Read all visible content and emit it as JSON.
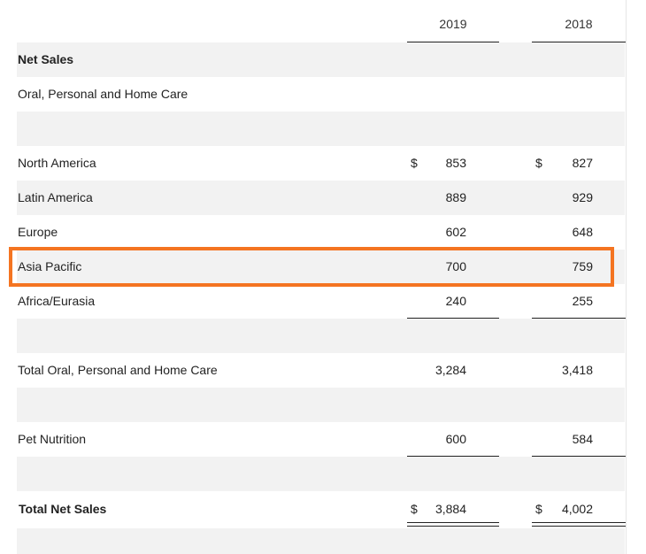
{
  "columns": {
    "y2019": "2019",
    "y2018": "2018"
  },
  "currency": "$",
  "highlight_color": "#f47421",
  "rows": {
    "net_sales_header": {
      "label": "Net Sales"
    },
    "segment_header": {
      "label": "Oral, Personal and Home Care"
    },
    "north_america": {
      "label": "North America",
      "v2019": "853",
      "v2018": "827"
    },
    "latin_america": {
      "label": "Latin America",
      "v2019": "889",
      "v2018": "929"
    },
    "europe": {
      "label": "Europe",
      "v2019": "602",
      "v2018": "648"
    },
    "asia_pacific": {
      "label": "Asia Pacific",
      "v2019": "700",
      "v2018": "759"
    },
    "africa_eurasia": {
      "label": "Africa/Eurasia",
      "v2019": "240",
      "v2018": "255"
    },
    "total_ophc": {
      "label": "Total Oral, Personal and Home Care",
      "v2019": "3,284",
      "v2018": "3,418"
    },
    "pet_nutrition": {
      "label": "Pet Nutrition",
      "v2019": "600",
      "v2018": "584"
    },
    "total_net_sales": {
      "label": "Total Net Sales",
      "v2019": "3,884",
      "v2018": "4,002"
    }
  }
}
